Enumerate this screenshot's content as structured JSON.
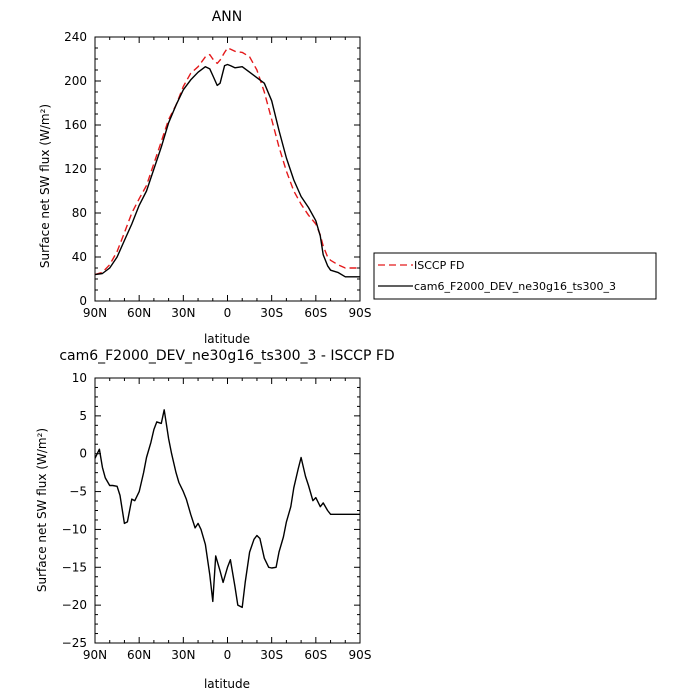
{
  "chart_data": [
    {
      "type": "line",
      "title": "ANN",
      "xlabel": "latitude",
      "ylabel": "Surface net SW flux (W/m²)",
      "xlim": [
        90,
        -90
      ],
      "ylim": [
        0,
        240
      ],
      "xticks": [
        90,
        60,
        30,
        0,
        -30,
        -60,
        -90
      ],
      "xtick_labels": [
        "90N",
        "60N",
        "30N",
        "0",
        "30S",
        "60S",
        "90S"
      ],
      "yticks": [
        0,
        40,
        80,
        120,
        160,
        200,
        240
      ],
      "ytick_labels": [
        "0",
        "40",
        "80",
        "120",
        "160",
        "200",
        "240"
      ],
      "grid": false,
      "legend_position": "right",
      "series": [
        {
          "name": "ISCCP FD",
          "color": "#e41a1c",
          "dash": "dashed",
          "x": [
            90,
            85,
            80,
            75,
            70,
            65,
            60,
            55,
            50,
            45,
            40,
            35,
            30,
            25,
            20,
            15,
            12,
            10,
            7,
            5,
            2,
            0,
            -2,
            -5,
            -10,
            -15,
            -20,
            -25,
            -30,
            -35,
            -40,
            -45,
            -50,
            -55,
            -60,
            -63,
            -65,
            -68,
            -70,
            -75,
            -80,
            -85,
            -90
          ],
          "y": [
            24,
            26,
            33,
            45,
            62,
            80,
            93,
            105,
            125,
            145,
            165,
            178,
            195,
            207,
            213,
            222,
            224,
            220,
            216,
            219,
            226,
            230,
            229,
            227,
            226,
            222,
            210,
            190,
            165,
            140,
            118,
            100,
            88,
            78,
            70,
            60,
            50,
            40,
            37,
            33,
            30,
            30,
            30
          ]
        },
        {
          "name": "cam6_F2000_DEV_ne30g16_ts300_3",
          "color": "#000000",
          "dash": "solid",
          "x": [
            90,
            85,
            80,
            75,
            70,
            65,
            60,
            55,
            50,
            45,
            40,
            35,
            30,
            25,
            20,
            15,
            12,
            10,
            7,
            5,
            2,
            0,
            -2,
            -5,
            -10,
            -15,
            -20,
            -25,
            -30,
            -35,
            -40,
            -45,
            -50,
            -55,
            -60,
            -63,
            -65,
            -68,
            -70,
            -75,
            -80,
            -85,
            -90
          ],
          "y": [
            24,
            25,
            30,
            40,
            55,
            70,
            87,
            100,
            120,
            140,
            162,
            178,
            192,
            201,
            208,
            213,
            211,
            205,
            196,
            198,
            214,
            215,
            214,
            212,
            213,
            208,
            203,
            198,
            182,
            155,
            130,
            110,
            95,
            85,
            73,
            59,
            42,
            32,
            28,
            26,
            22,
            22,
            22
          ]
        }
      ]
    },
    {
      "type": "line",
      "title": "cam6_F2000_DEV_ne30g16_ts300_3 - ISCCP FD",
      "xlabel": "latitude",
      "ylabel": "Surface net SW flux (W/m²)",
      "xlim": [
        90,
        -90
      ],
      "ylim": [
        -25,
        10
      ],
      "xticks": [
        90,
        60,
        30,
        0,
        -30,
        -60,
        -90
      ],
      "xtick_labels": [
        "90N",
        "60N",
        "30N",
        "0",
        "30S",
        "60S",
        "90S"
      ],
      "yticks": [
        10,
        5,
        0,
        -5,
        -10,
        -15,
        -20,
        -25
      ],
      "ytick_labels": [
        "10",
        "5",
        "0",
        "−5",
        "−10",
        "−15",
        "−20",
        "−25"
      ],
      "grid": false,
      "series": [
        {
          "color": "#000000",
          "dash": "solid",
          "x": [
            90,
            87,
            85,
            83,
            80,
            78,
            75,
            73,
            70,
            68,
            65,
            63,
            60,
            57,
            55,
            52,
            50,
            48,
            45,
            43,
            40,
            38,
            35,
            33,
            30,
            28,
            25,
            22,
            20,
            18,
            15,
            12,
            10,
            8,
            5,
            3,
            0,
            -2,
            -5,
            -7,
            -10,
            -12,
            -15,
            -18,
            -20,
            -22,
            -25,
            -28,
            -30,
            -33,
            -35,
            -38,
            -40,
            -43,
            -45,
            -48,
            -50,
            -53,
            -55,
            -58,
            -60,
            -63,
            -65,
            -68,
            -70,
            -73,
            -75,
            -78,
            -80,
            -83,
            -85,
            -88,
            -90
          ],
          "y": [
            -0.6,
            0.6,
            -1.8,
            -3.2,
            -4.2,
            -4.2,
            -4.3,
            -5.5,
            -9.2,
            -9.0,
            -6.0,
            -6.2,
            -5.0,
            -2.5,
            -0.5,
            1.5,
            3.2,
            4.2,
            4.0,
            5.8,
            2.0,
            0.0,
            -2.5,
            -3.8,
            -5.0,
            -6.0,
            -8.0,
            -9.8,
            -9.2,
            -10.0,
            -12.0,
            -16.0,
            -19.5,
            -13.5,
            -15.5,
            -17.0,
            -15.0,
            -14.0,
            -17.5,
            -20.0,
            -20.3,
            -17.0,
            -13.0,
            -11.3,
            -10.8,
            -11.2,
            -13.8,
            -15.0,
            -15.1,
            -15.0,
            -13.0,
            -11.0,
            -9.0,
            -7.0,
            -4.5,
            -2.0,
            -0.5,
            -3.0,
            -4.2,
            -6.2,
            -5.8,
            -7.0,
            -6.5,
            -7.5,
            -8.0,
            -8.0,
            -8.0,
            -8.0,
            -8.0,
            -8.0,
            -8.0,
            -8.0,
            -8.0
          ]
        }
      ]
    }
  ]
}
